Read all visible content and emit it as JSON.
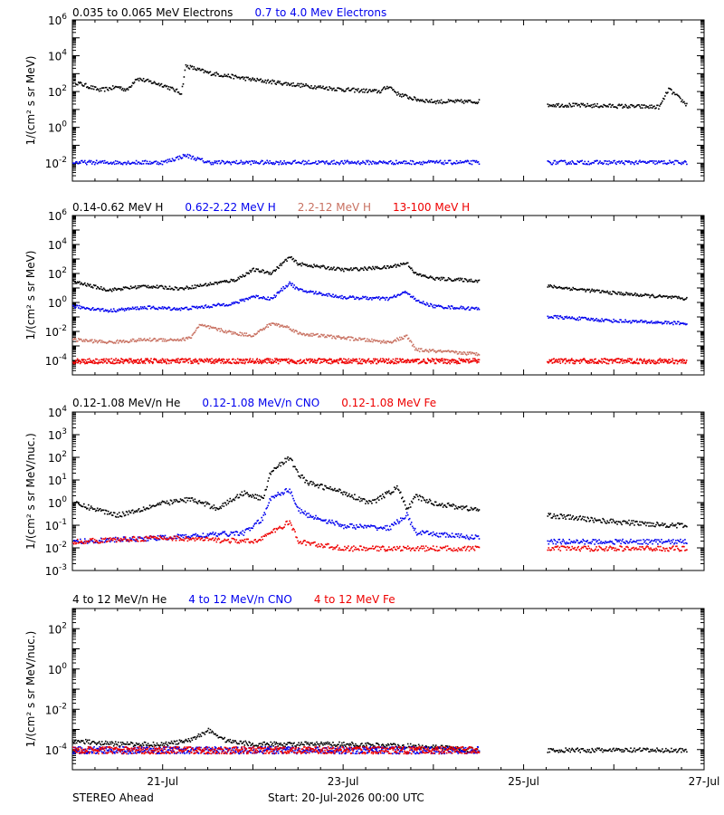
{
  "colors": {
    "black": "#000000",
    "blue": "#0000ee",
    "tan": "#c87060",
    "red": "#ee0000"
  },
  "footer": {
    "spacecraft": "STEREO Ahead",
    "start": "Start: 20-Jul-2026 00:00 UTC"
  },
  "x_axis": {
    "min_day": 0,
    "max_day": 7,
    "ticks": [
      {
        "day": 1,
        "label": "21-Jul"
      },
      {
        "day": 3,
        "label": "23-Jul"
      },
      {
        "day": 5,
        "label": "25-Jul"
      },
      {
        "day": 7,
        "label": "27-Jul"
      }
    ]
  },
  "chart_data": [
    {
      "type": "scatter",
      "ylabel": "1/(cm² s sr MeV)",
      "log_y": true,
      "ylim_exp": [
        -3,
        6
      ],
      "ytick_exp": [
        -2,
        0,
        2,
        4,
        6
      ],
      "data_gap_days": [
        4.5,
        5.25
      ],
      "series": [
        {
          "name": "0.035 to 0.065 MeV Electrons",
          "color": "black",
          "x": [
            0,
            0.3,
            0.5,
            0.6,
            0.7,
            1.0,
            1.2,
            1.25,
            1.5,
            2,
            2.5,
            3,
            3.4,
            3.5,
            3.6,
            3.8,
            4,
            4.5,
            5.25,
            6,
            6.5,
            6.6,
            6.8
          ],
          "y": [
            400,
            130,
            200,
            130,
            600,
            250,
            90,
            3000,
            1200,
            500,
            250,
            140,
            110,
            220,
            80,
            40,
            30,
            30,
            20,
            17,
            15,
            150,
            20
          ]
        },
        {
          "name": "0.7 to 4.0 Mev Electrons",
          "color": "blue",
          "x": [
            0,
            1,
            1.25,
            1.5,
            2.5,
            3.5,
            4.5,
            5.25,
            6,
            6.8
          ],
          "y": [
            0.012,
            0.012,
            0.03,
            0.012,
            0.012,
            0.012,
            0.012,
            0.012,
            0.012,
            0.012
          ]
        }
      ]
    },
    {
      "type": "scatter",
      "ylabel": "1/(cm² s sr MeV)",
      "log_y": true,
      "ylim_exp": [
        -5,
        6
      ],
      "ytick_exp": [
        -4,
        -2,
        0,
        2,
        4,
        6
      ],
      "data_gap_days": [
        4.5,
        5.25
      ],
      "series": [
        {
          "name": "0.14-0.62 MeV H",
          "color": "black",
          "x": [
            0,
            0.4,
            0.8,
            1.2,
            1.5,
            1.8,
            2.0,
            2.2,
            2.4,
            2.5,
            3.0,
            3.5,
            3.7,
            3.8,
            4.0,
            4.5,
            5.25,
            6.0,
            6.8
          ],
          "y": [
            30,
            8,
            15,
            10,
            20,
            40,
            200,
            120,
            1500,
            500,
            200,
            300,
            600,
            100,
            50,
            35,
            15,
            5,
            2
          ]
        },
        {
          "name": "0.62-2.22 MeV H",
          "color": "blue",
          "x": [
            0,
            0.4,
            0.8,
            1.2,
            1.5,
            1.8,
            2.0,
            2.2,
            2.4,
            2.5,
            3.0,
            3.5,
            3.7,
            3.8,
            4.0,
            4.5,
            5.25,
            6.0,
            6.8
          ],
          "y": [
            0.6,
            0.3,
            0.5,
            0.4,
            0.6,
            1.0,
            3.0,
            2.0,
            25,
            8,
            2.5,
            2.0,
            6,
            1.5,
            0.6,
            0.4,
            0.12,
            0.06,
            0.04
          ]
        },
        {
          "name": "2.2-12 MeV H",
          "color": "tan",
          "x": [
            0,
            0.4,
            0.8,
            1.2,
            1.3,
            1.4,
            1.8,
            2.0,
            2.2,
            2.4,
            2.5,
            3.0,
            3.5,
            3.7,
            3.8,
            4.5
          ],
          "y": [
            0.003,
            0.002,
            0.003,
            0.003,
            0.004,
            0.03,
            0.008,
            0.006,
            0.04,
            0.02,
            0.008,
            0.004,
            0.002,
            0.005,
            0.0006,
            0.0003
          ]
        },
        {
          "name": "13-100 MeV H",
          "color": "red",
          "x": [
            0,
            4.5,
            5.25,
            6.8
          ],
          "y": [
            0.0001,
            0.0001,
            0.0001,
            0.0001
          ]
        }
      ]
    },
    {
      "type": "scatter",
      "ylabel": "1/(cm² s sr MeV/nuc.)",
      "log_y": true,
      "ylim_exp": [
        -3,
        4
      ],
      "ytick_exp": [
        -3,
        -2,
        -1,
        0,
        1,
        2,
        3,
        4
      ],
      "data_gap_days": [
        4.5,
        5.25
      ],
      "series": [
        {
          "name": "0.12-1.08 MeV/n He",
          "color": "black",
          "x": [
            0,
            0.5,
            1.0,
            1.3,
            1.6,
            1.9,
            2.1,
            2.2,
            2.4,
            2.5,
            2.6,
            3.0,
            3.3,
            3.6,
            3.7,
            3.8,
            4.0,
            4.5,
            5.25,
            6.0,
            6.8
          ],
          "y": [
            1,
            0.3,
            1,
            1.5,
            0.6,
            3,
            1.5,
            30,
            100,
            20,
            8,
            3,
            1,
            5,
            0.5,
            2,
            1,
            0.5,
            0.3,
            0.15,
            0.1
          ]
        },
        {
          "name": "0.12-1.08 MeV/n CNO",
          "color": "blue",
          "x": [
            0,
            1.0,
            1.9,
            2.1,
            2.2,
            2.4,
            2.5,
            2.6,
            3.0,
            3.5,
            3.7,
            3.8,
            4.5,
            5.25,
            6.8
          ],
          "y": [
            0.02,
            0.03,
            0.05,
            0.2,
            2,
            4,
            0.5,
            0.3,
            0.1,
            0.08,
            0.3,
            0.05,
            0.03,
            0.02,
            0.02
          ]
        },
        {
          "name": "0.12-1.08 MeV Fe",
          "color": "red",
          "x": [
            0,
            1.0,
            2.0,
            2.2,
            2.4,
            2.5,
            3.0,
            4.5,
            5.25,
            6.8
          ],
          "y": [
            0.02,
            0.03,
            0.02,
            0.05,
            0.15,
            0.02,
            0.01,
            0.01,
            0.01,
            0.01
          ]
        }
      ]
    },
    {
      "type": "scatter",
      "ylabel": "1/(cm² s sr MeV/nuc.)",
      "log_y": true,
      "ylim_exp": [
        -5,
        3
      ],
      "ytick_exp": [
        -4,
        -2,
        0,
        2
      ],
      "data_gap_days": [
        4.5,
        5.25
      ],
      "series": [
        {
          "name": "4 to 12 MeV/n He",
          "color": "black",
          "x": [
            0,
            0.5,
            1.0,
            1.3,
            1.5,
            1.7,
            2.0,
            3.0,
            4.0,
            4.5,
            5.25,
            6.8
          ],
          "y": [
            0.0003,
            0.0002,
            0.0002,
            0.0003,
            0.001,
            0.0003,
            0.0002,
            0.0002,
            0.00015,
            0.0001,
            0.0001,
            0.0001
          ]
        },
        {
          "name": "4 to 12 MeV/n CNO",
          "color": "blue",
          "x": [
            0,
            4.5
          ],
          "y": [
            0.0001,
            0.0001
          ]
        },
        {
          "name": "4 to 12 MeV Fe",
          "color": "red",
          "x": [
            0,
            4.5
          ],
          "y": [
            0.0001,
            0.0001
          ]
        }
      ]
    }
  ]
}
